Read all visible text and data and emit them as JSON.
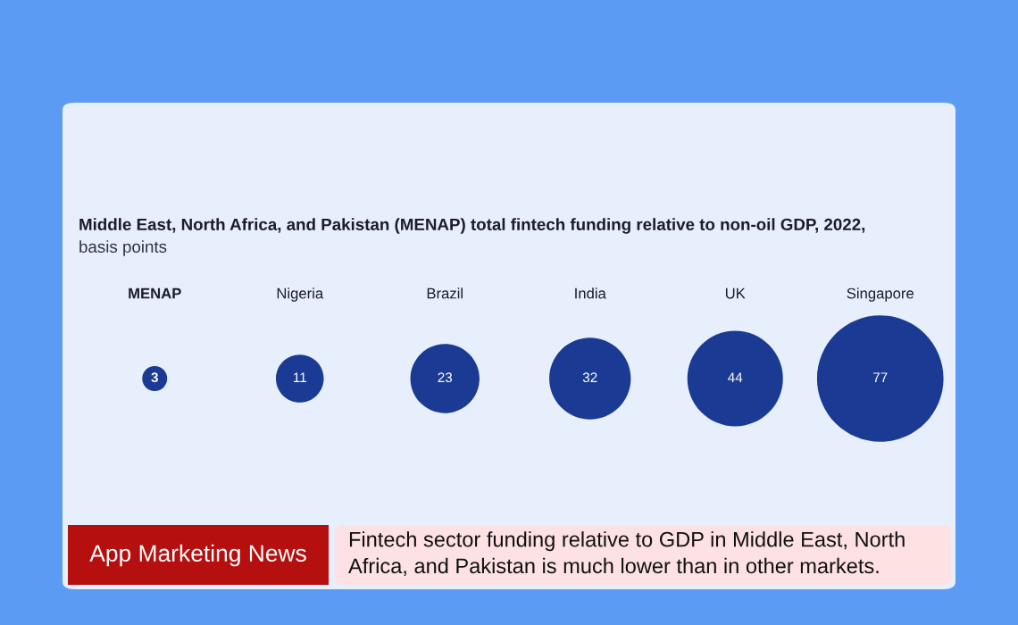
{
  "chart_data": {
    "type": "other",
    "title": "Middle East, North Africa, and Pakistan (MENAP) total fintech funding relative to non-oil GDP, 2022,",
    "subtitle": "basis points",
    "categories": [
      "MENAP",
      "Nigeria",
      "Brazil",
      "India",
      "UK",
      "Singapore"
    ],
    "values": [
      3,
      11,
      23,
      32,
      44,
      77
    ],
    "color": "#1b3a93",
    "data_labels": true,
    "annotations": [
      "App Marketing News",
      "Fintech sector funding relative to GDP in Middle East, North\nAfrica, and Pakistan is much lower than in other markets."
    ]
  }
}
